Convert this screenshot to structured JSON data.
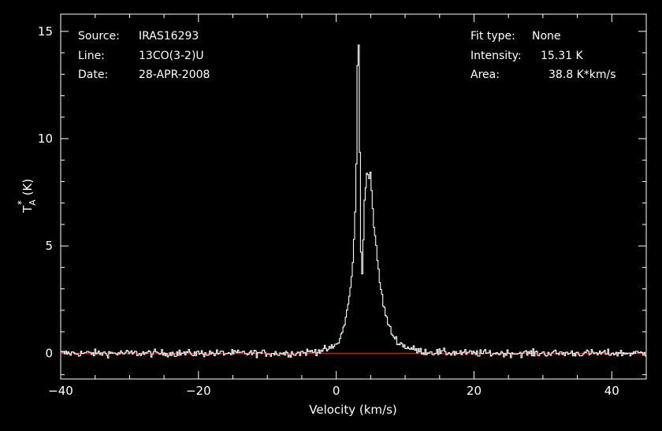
{
  "chart_data": {
    "type": "line",
    "xlabel": "Velocity (km/s)",
    "ylabel_main": "T",
    "ylabel_sub": "A",
    "ylabel_sup": "*",
    "ylabel_unit": "(K)",
    "xlim": [
      -40,
      45
    ],
    "ylim": [
      -1.2,
      15.8
    ],
    "x_ticks": [
      -40,
      -20,
      0,
      20,
      40
    ],
    "y_ticks": [
      0,
      5,
      10,
      15
    ],
    "grid": false,
    "colors": {
      "background": "#000000",
      "spectrum": "#ffffff",
      "baseline": "#dd2222",
      "axes": "#ffffff"
    },
    "series": [
      {
        "x": [
          -40,
          -6,
          -3,
          -1,
          0,
          0.5,
          1,
          1.5,
          2,
          2.4,
          2.8,
          3.0,
          3.15,
          3.3,
          3.45,
          3.6,
          3.8,
          4.0,
          4.3,
          4.6,
          4.9,
          5.1,
          5.4,
          5.8,
          6.3,
          6.8,
          7.5,
          8.2,
          9,
          10,
          11,
          12,
          14,
          17,
          20,
          45
        ],
        "y": [
          0,
          0,
          0.1,
          0.2,
          0.4,
          0.7,
          1.2,
          2.0,
          3.0,
          4.5,
          7.5,
          13.5,
          15.3,
          11,
          6,
          3.0,
          4.5,
          7.0,
          8.3,
          8.5,
          8.3,
          7.3,
          6.0,
          4.6,
          3.2,
          2.2,
          1.3,
          0.8,
          0.5,
          0.3,
          0.2,
          0.1,
          0.05,
          0.02,
          0,
          0
        ],
        "noise_rms": 0.12
      },
      {
        "name": "baseline",
        "x": [
          -40,
          45
        ],
        "y": [
          0,
          0
        ]
      }
    ]
  },
  "info": {
    "source_label": "Source:",
    "source_value": "IRAS16293",
    "line_label": "Line:",
    "line_value": "13CO(3-2)U",
    "date_label": "Date:",
    "date_value": "28-APR-2008",
    "fit_label": "Fit type:",
    "fit_value": "None",
    "intensity_label": "Intensity:",
    "intensity_value": "15.31 K",
    "area_label": "Area:",
    "area_value": "38.8 K*km/s"
  }
}
